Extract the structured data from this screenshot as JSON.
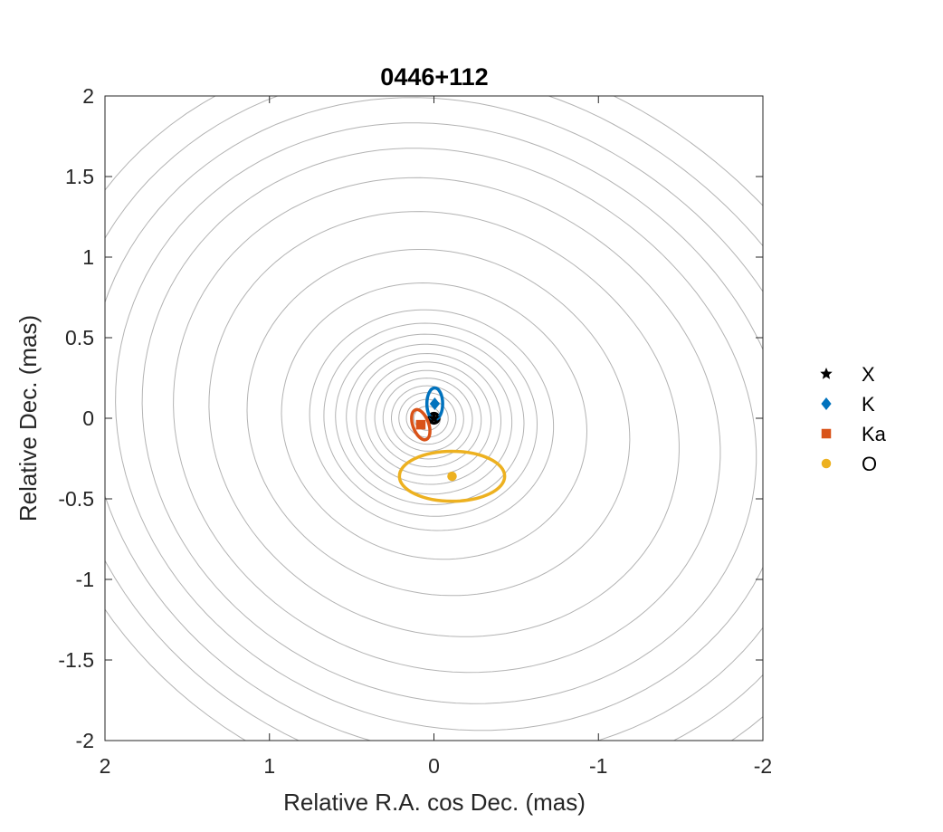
{
  "chart_data": {
    "type": "scatter",
    "title": "0446+112",
    "xlabel": "Relative R.A. cos Dec. (mas)",
    "ylabel": "Relative Dec. (mas)",
    "xlim": [
      2,
      -2
    ],
    "ylim": [
      -2,
      2
    ],
    "x_reversed": true,
    "xticks": [
      "2",
      "1",
      "0",
      "-1",
      "-2"
    ],
    "yticks": [
      "2",
      "1.5",
      "1",
      "0.5",
      "0",
      "-0.5",
      "-1",
      "-1.5",
      "-2"
    ],
    "grid": false,
    "legend_position": "right",
    "contour_color": "#b3b3b3",
    "series": [
      {
        "name": "X",
        "marker": "star",
        "color": "#000000",
        "x": [
          0.0
        ],
        "y": [
          0.0
        ],
        "ellipse": {
          "a": 0.03,
          "b": 0.03,
          "angle": 0
        }
      },
      {
        "name": "K",
        "marker": "diamond",
        "color": "#0072bd",
        "x": [
          -0.005
        ],
        "y": [
          0.09
        ],
        "ellipse": {
          "a": 0.048,
          "b": 0.098,
          "angle": 0
        }
      },
      {
        "name": "Ka",
        "marker": "square",
        "color": "#d95319",
        "x": [
          0.08
        ],
        "y": [
          -0.04
        ],
        "ellipse": {
          "a": 0.048,
          "b": 0.098,
          "angle": -20
        }
      },
      {
        "name": "O",
        "marker": "circle",
        "color": "#edb120",
        "x": [
          -0.11
        ],
        "y": [
          -0.36
        ],
        "ellipse": {
          "a": 0.32,
          "b": 0.155,
          "angle": 0
        }
      }
    ]
  }
}
